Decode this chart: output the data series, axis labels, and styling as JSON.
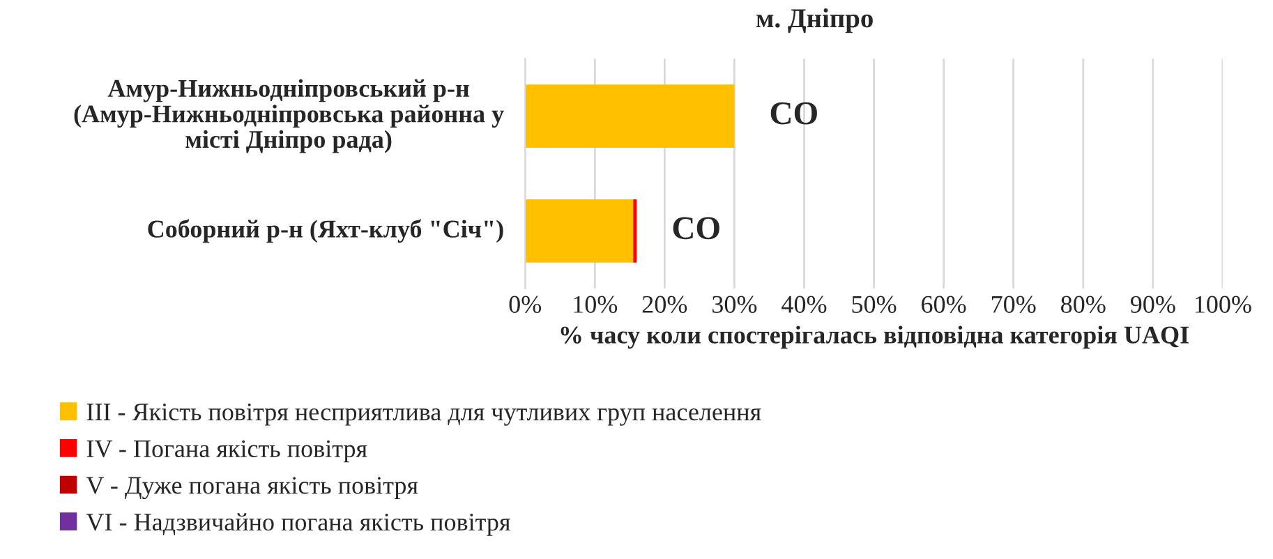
{
  "chart_data": {
    "type": "bar",
    "orientation": "horizontal",
    "stacked": true,
    "title": "м. Дніпро",
    "categories": [
      "Амур-Нижньодніпровський р-н (Амур-Нижньодніпровська районна у місті Дніпро рада)",
      "Соборний р-н (Яхт-клуб \"Січ\")"
    ],
    "series": [
      {
        "name": "III - Якість повітря несприятлива для чутливих груп населення",
        "color": "#ffc000",
        "values": [
          30,
          15.5
        ]
      },
      {
        "name": "IV - Погана якість повітря",
        "color": "#ff0000",
        "values": [
          null,
          0.5
        ]
      },
      {
        "name": "V - Дуже погана якість повітря",
        "color": "#c00000",
        "values": [
          null,
          null
        ]
      },
      {
        "name": "VI - Надзвичайно погана якість повітря",
        "color": "#7030a0",
        "values": [
          null,
          null
        ]
      }
    ],
    "xlabel": "% часу коли спостерігалась відповідна категорія UAQI",
    "xlim": [
      0,
      100
    ],
    "xticks": [
      {
        "value": 0,
        "label": "0%"
      },
      {
        "value": 10,
        "label": "10%"
      },
      {
        "value": 20,
        "label": "20%"
      },
      {
        "value": 30,
        "label": "30%"
      },
      {
        "value": 40,
        "label": "40%"
      },
      {
        "value": 50,
        "label": "50%"
      },
      {
        "value": 60,
        "label": "60%"
      },
      {
        "value": 70,
        "label": "70%"
      },
      {
        "value": 80,
        "label": "80%"
      },
      {
        "value": 90,
        "label": "90%"
      },
      {
        "value": 100,
        "label": "100%"
      }
    ],
    "grid": "x",
    "legend": "bottom",
    "annotations": [
      {
        "text": "CO",
        "x": 30,
        "y": "Амур-Нижньодніпровський р-н (Амур-Нижньодніпровська районна у місті Дніпро рада)"
      },
      {
        "text": "CO",
        "x": 16,
        "y": "Соборний р-н (Яхт-клуб \"Січ\")"
      }
    ]
  }
}
